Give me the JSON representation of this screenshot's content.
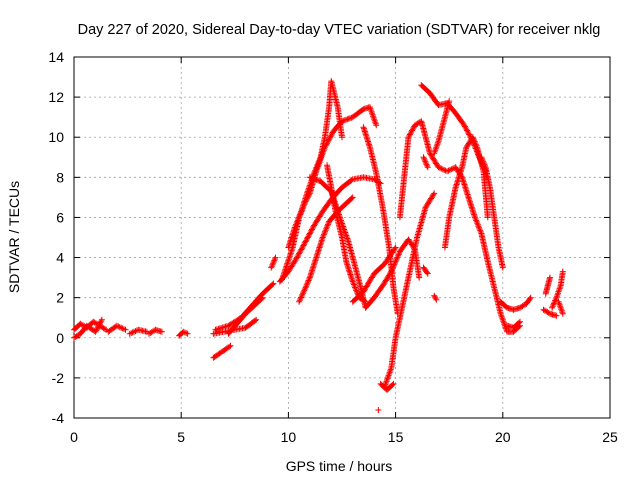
{
  "chart_data": {
    "type": "scatter",
    "title": "Day 227 of 2020, Sidereal Day-to-day VTEC variation (SDTVAR) for receiver nklg",
    "xlabel": "GPS time / hours",
    "ylabel": "SDTVAR / TECUs",
    "xlim": [
      0,
      25
    ],
    "ylim": [
      -4,
      14
    ],
    "xticks": [
      "0",
      "5",
      "10",
      "15",
      "20",
      "25"
    ],
    "yticks": [
      "-4",
      "-2",
      "0",
      "2",
      "4",
      "6",
      "8",
      "10",
      "12",
      "14"
    ],
    "grid": true,
    "marker": "plus",
    "color": "#ff0000",
    "series": [
      {
        "name": "segments",
        "segments": [
          [
            [
              0.0,
              0.4
            ],
            [
              0.3,
              0.7
            ],
            [
              0.6,
              0.5
            ],
            [
              0.9,
              0.8
            ],
            [
              1.2,
              0.6
            ],
            [
              1.5,
              0.4
            ]
          ],
          [
            [
              0.0,
              0.0
            ],
            [
              0.3,
              0.2
            ],
            [
              0.6,
              0.6
            ],
            [
              1.0,
              0.3
            ],
            [
              1.3,
              0.9
            ]
          ],
          [
            [
              1.6,
              0.3
            ],
            [
              2.0,
              0.6
            ],
            [
              2.4,
              0.4
            ]
          ],
          [
            [
              2.6,
              0.2
            ],
            [
              3.0,
              0.4
            ],
            [
              3.4,
              0.3
            ]
          ],
          [
            [
              3.5,
              0.2
            ],
            [
              3.8,
              0.4
            ],
            [
              4.1,
              0.3
            ]
          ],
          [
            [
              4.9,
              0.1
            ],
            [
              5.1,
              0.3
            ],
            [
              5.3,
              0.2
            ]
          ],
          [
            [
              6.5,
              -1.0
            ],
            [
              6.9,
              -0.7
            ],
            [
              7.3,
              -0.4
            ]
          ],
          [
            [
              6.5,
              0.2
            ],
            [
              7.0,
              0.3
            ],
            [
              7.5,
              0.4
            ],
            [
              8.0,
              0.5
            ],
            [
              8.5,
              0.9
            ]
          ],
          [
            [
              6.6,
              0.4
            ],
            [
              7.2,
              0.6
            ],
            [
              7.8,
              1.0
            ],
            [
              8.3,
              1.6
            ],
            [
              8.8,
              2.2
            ],
            [
              9.3,
              2.7
            ]
          ],
          [
            [
              7.2,
              0.2
            ],
            [
              7.6,
              0.7
            ],
            [
              8.0,
              1.2
            ],
            [
              8.4,
              1.6
            ],
            [
              8.8,
              2.0
            ]
          ],
          [
            [
              9.2,
              3.5
            ],
            [
              9.4,
              4.0
            ]
          ],
          [
            [
              9.6,
              2.8
            ],
            [
              10.0,
              3.3
            ],
            [
              10.4,
              4.0
            ],
            [
              10.8,
              4.8
            ],
            [
              11.2,
              5.6
            ],
            [
              11.6,
              6.3
            ],
            [
              12.0,
              6.9
            ],
            [
              12.5,
              7.5
            ],
            [
              13.0,
              7.9
            ],
            [
              13.5,
              8.0
            ],
            [
              14.0,
              7.9
            ],
            [
              14.3,
              7.7
            ]
          ],
          [
            [
              9.7,
              2.9
            ],
            [
              10.2,
              4.5
            ],
            [
              10.5,
              6.0
            ],
            [
              10.8,
              6.8
            ],
            [
              11.0,
              7.2
            ],
            [
              11.3,
              8.3
            ],
            [
              11.7,
              9.5
            ],
            [
              12.1,
              10.3
            ],
            [
              12.5,
              10.8
            ],
            [
              13.0,
              11.0
            ],
            [
              13.5,
              11.4
            ],
            [
              13.8,
              11.5
            ],
            [
              14.1,
              10.6
            ]
          ],
          [
            [
              10.0,
              4.5
            ],
            [
              10.3,
              5.5
            ],
            [
              10.6,
              6.3
            ],
            [
              10.9,
              7.3
            ],
            [
              11.2,
              8.2
            ],
            [
              11.5,
              9.0
            ],
            [
              11.7,
              10.0
            ],
            [
              11.9,
              11.5
            ],
            [
              12.0,
              12.8
            ],
            [
              12.3,
              11.5
            ],
            [
              12.5,
              10.0
            ]
          ],
          [
            [
              11.0,
              8.0
            ],
            [
              11.5,
              7.8
            ],
            [
              12.0,
              7.3
            ],
            [
              12.4,
              6.0
            ],
            [
              12.8,
              4.8
            ],
            [
              13.1,
              3.6
            ],
            [
              13.4,
              2.4
            ],
            [
              13.6,
              1.5
            ]
          ],
          [
            [
              11.8,
              8.6
            ],
            [
              12.0,
              7.5
            ],
            [
              12.2,
              6.3
            ],
            [
              12.5,
              5.0
            ],
            [
              12.7,
              3.8
            ],
            [
              13.0,
              2.8
            ],
            [
              13.3,
              2.0
            ],
            [
              13.6,
              1.8
            ]
          ],
          [
            [
              10.5,
              1.8
            ],
            [
              10.8,
              2.5
            ],
            [
              11.0,
              3.0
            ],
            [
              11.3,
              4.0
            ],
            [
              11.6,
              5.0
            ],
            [
              11.9,
              5.8
            ],
            [
              12.3,
              6.3
            ],
            [
              12.7,
              6.7
            ],
            [
              13.0,
              7.0
            ]
          ],
          [
            [
              13.6,
              1.5
            ],
            [
              14.0,
              2.0
            ],
            [
              14.4,
              2.6
            ],
            [
              14.8,
              3.3
            ],
            [
              15.2,
              4.3
            ],
            [
              15.6,
              4.9
            ],
            [
              15.9,
              4.4
            ],
            [
              16.1,
              3.0
            ]
          ],
          [
            [
              13.0,
              1.8
            ],
            [
              13.5,
              2.3
            ],
            [
              14.0,
              3.2
            ],
            [
              14.5,
              3.7
            ],
            [
              15.0,
              4.5
            ]
          ],
          [
            [
              14.5,
              -2.4
            ],
            [
              14.8,
              -1.5
            ],
            [
              15.0,
              0.0
            ],
            [
              15.3,
              1.5
            ],
            [
              15.6,
              3.0
            ],
            [
              16.0,
              5.0
            ],
            [
              16.4,
              6.5
            ],
            [
              16.8,
              7.2
            ]
          ],
          [
            [
              13.5,
              10.5
            ],
            [
              13.8,
              9.5
            ],
            [
              14.1,
              8.2
            ],
            [
              14.4,
              6.5
            ],
            [
              14.7,
              4.5
            ],
            [
              14.9,
              2.5
            ],
            [
              15.1,
              1.2
            ]
          ],
          [
            [
              14.2,
              -3.6
            ]
          ],
          [
            [
              14.3,
              -2.3
            ],
            [
              14.6,
              -2.6
            ],
            [
              14.9,
              -2.3
            ]
          ],
          [
            [
              15.2,
              6.0
            ],
            [
              15.4,
              8.0
            ],
            [
              15.6,
              10.0
            ],
            [
              15.9,
              10.6
            ],
            [
              16.2,
              10.8
            ],
            [
              16.4,
              10.0
            ],
            [
              16.6,
              9.2
            ]
          ],
          [
            [
              16.6,
              9.2
            ],
            [
              17.0,
              8.5
            ],
            [
              17.4,
              8.3
            ],
            [
              17.8,
              8.5
            ],
            [
              18.1,
              8.0
            ],
            [
              18.4,
              7.0
            ],
            [
              18.7,
              6.0
            ],
            [
              19.0,
              5.2
            ],
            [
              19.3,
              3.8
            ],
            [
              19.6,
              2.5
            ],
            [
              19.9,
              1.2
            ],
            [
              20.2,
              0.3
            ],
            [
              20.5,
              0.3
            ],
            [
              20.8,
              0.6
            ]
          ],
          [
            [
              16.2,
              12.6
            ],
            [
              16.6,
              12.2
            ],
            [
              17.0,
              11.6
            ],
            [
              17.4,
              11.7
            ],
            [
              17.8,
              11.2
            ],
            [
              18.2,
              10.6
            ],
            [
              18.6,
              9.8
            ],
            [
              18.9,
              9.0
            ],
            [
              19.2,
              8.3
            ]
          ],
          [
            [
              17.3,
              4.5
            ],
            [
              17.5,
              6.0
            ],
            [
              17.8,
              7.5
            ],
            [
              18.1,
              8.5
            ],
            [
              18.3,
              9.5
            ],
            [
              18.6,
              10.0
            ],
            [
              18.8,
              9.5
            ],
            [
              19.1,
              8.3
            ],
            [
              19.3,
              6.0
            ]
          ],
          [
            [
              16.8,
              9.2
            ],
            [
              17.0,
              9.8
            ],
            [
              17.3,
              11.0
            ],
            [
              17.5,
              11.8
            ]
          ],
          [
            [
              16.3,
              9.0
            ],
            [
              16.5,
              8.5
            ]
          ],
          [
            [
              16.3,
              3.5
            ],
            [
              16.5,
              3.2
            ]
          ],
          [
            [
              16.8,
              2.1
            ],
            [
              16.9,
              1.9
            ]
          ],
          [
            [
              19.0,
              9.0
            ],
            [
              19.2,
              8.5
            ],
            [
              19.4,
              7.5
            ],
            [
              19.6,
              6.0
            ],
            [
              19.8,
              4.5
            ],
            [
              20.0,
              3.5
            ]
          ],
          [
            [
              19.9,
              1.8
            ],
            [
              20.2,
              1.5
            ],
            [
              20.5,
              1.4
            ],
            [
              20.8,
              1.5
            ],
            [
              21.1,
              1.7
            ],
            [
              21.3,
              2.0
            ]
          ],
          [
            [
              20.2,
              0.6
            ],
            [
              20.5,
              0.5
            ],
            [
              20.8,
              0.8
            ]
          ],
          [
            [
              21.9,
              1.4
            ],
            [
              22.2,
              1.2
            ],
            [
              22.5,
              1.1
            ]
          ],
          [
            [
              22.3,
              1.5
            ],
            [
              22.5,
              2.0
            ],
            [
              22.7,
              2.6
            ],
            [
              22.8,
              3.3
            ]
          ],
          [
            [
              22.6,
              1.8
            ],
            [
              22.7,
              1.5
            ],
            [
              22.8,
              1.2
            ]
          ],
          [
            [
              22.0,
              2.2
            ],
            [
              22.1,
              2.6
            ],
            [
              22.2,
              3.0
            ]
          ]
        ]
      }
    ]
  }
}
